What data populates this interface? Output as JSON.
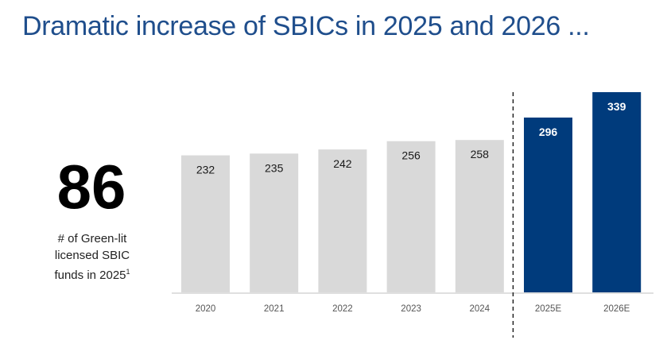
{
  "title": "Dramatic increase of SBICs in 2025 and 2026 ...",
  "highlight": {
    "value": "86",
    "caption": "# of Green-lit licensed SBIC funds in 2025",
    "footnote": "1"
  },
  "colors": {
    "title": "#1f4e8c",
    "actual": "#d9d9d9",
    "estimate": "#003b7c"
  },
  "chart_data": {
    "type": "bar",
    "categories": [
      "2020",
      "2021",
      "2022",
      "2023",
      "2024",
      "2025E",
      "2026E"
    ],
    "values": [
      232,
      235,
      242,
      256,
      258,
      296,
      339
    ],
    "estimated": [
      false,
      false,
      false,
      false,
      false,
      true,
      true
    ],
    "title": "",
    "xlabel": "",
    "ylabel": "",
    "ylim": [
      0,
      339
    ],
    "grid": false,
    "divider_before": "2025E"
  }
}
